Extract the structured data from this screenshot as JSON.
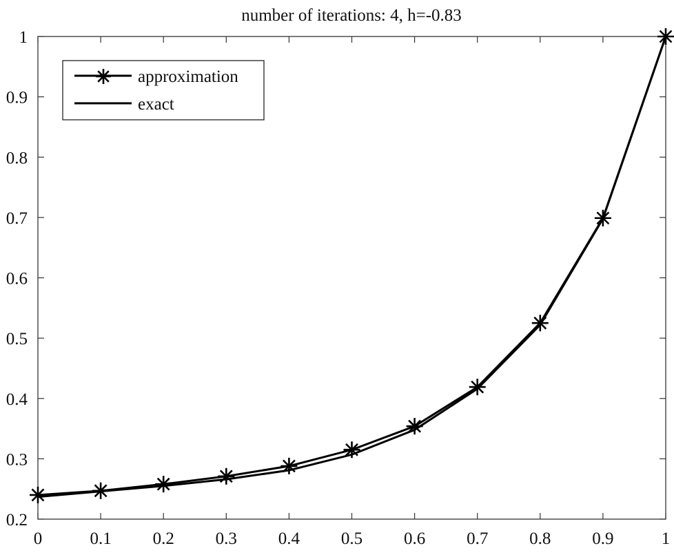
{
  "chart_data": {
    "type": "line",
    "title": "number of iterations: 4, h=-0.83",
    "xlabel": "",
    "ylabel": "",
    "xlim": [
      0,
      1
    ],
    "ylim": [
      0.2,
      1
    ],
    "grid": false,
    "legend_placement": "top-left",
    "x_ticks": [
      "0",
      "0.1",
      "0.2",
      "0.3",
      "0.4",
      "0.5",
      "0.6",
      "0.7",
      "0.8",
      "0.9",
      "1"
    ],
    "y_ticks": [
      "0.2",
      "0.3",
      "0.4",
      "0.5",
      "0.6",
      "0.7",
      "0.8",
      "0.9",
      "1"
    ],
    "x": [
      0,
      0.1,
      0.2,
      0.3,
      0.4,
      0.5,
      0.6,
      0.7,
      0.8,
      0.9,
      1.0
    ],
    "series": [
      {
        "name": "approximation",
        "marker": "asterisk",
        "color": "#000000",
        "values": [
          0.24,
          0.247,
          0.258,
          0.271,
          0.288,
          0.315,
          0.354,
          0.419,
          0.525,
          0.699,
          1.0
        ]
      },
      {
        "name": "exact",
        "marker": "none",
        "color": "#000000",
        "values": [
          0.237,
          0.246,
          0.255,
          0.266,
          0.281,
          0.307,
          0.348,
          0.416,
          0.522,
          0.698,
          1.0
        ]
      }
    ]
  }
}
